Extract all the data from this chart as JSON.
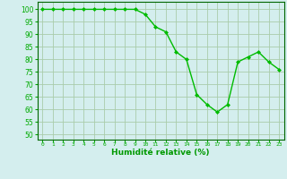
{
  "x": [
    0,
    1,
    2,
    3,
    4,
    5,
    6,
    7,
    8,
    9,
    10,
    11,
    12,
    13,
    14,
    15,
    16,
    17,
    18,
    19,
    20,
    21,
    22,
    23
  ],
  "y": [
    100,
    100,
    100,
    100,
    100,
    100,
    100,
    100,
    100,
    100,
    98,
    93,
    91,
    83,
    80,
    66,
    62,
    59,
    62,
    79,
    81,
    83,
    79,
    76
  ],
  "line_color": "#00bb00",
  "marker": "D",
  "marker_size": 2,
  "bg_color": "#d4eeee",
  "grid_color": "#aaccaa",
  "xlabel": "Humidité relative (%)",
  "xlabel_color": "#009900",
  "xlim": [
    -0.5,
    23.5
  ],
  "ylim": [
    48,
    103
  ],
  "yticks": [
    50,
    55,
    60,
    65,
    70,
    75,
    80,
    85,
    90,
    95,
    100
  ],
  "xticks": [
    0,
    1,
    2,
    3,
    4,
    5,
    6,
    7,
    8,
    9,
    10,
    11,
    12,
    13,
    14,
    15,
    16,
    17,
    18,
    19,
    20,
    21,
    22,
    23
  ],
  "tick_color": "#00aa00",
  "axis_color": "#006600",
  "figsize": [
    3.2,
    2.0
  ],
  "dpi": 100
}
